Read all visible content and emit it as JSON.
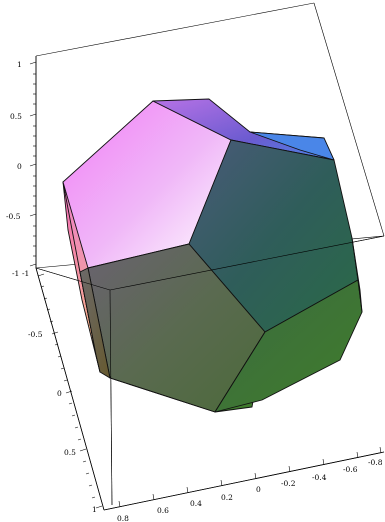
{
  "plot": {
    "z_axis": {
      "ticks": [
        "1",
        "0.5",
        "0",
        "-0.5",
        "-1"
      ]
    },
    "y_axis": {
      "ticks": [
        "-1",
        "-0.5",
        "0",
        "0.5",
        "1"
      ]
    },
    "x_axis": {
      "ticks": [
        "0.8",
        "0.6",
        "0.4",
        "0.2",
        "0",
        "-0.2",
        "-0.4",
        "-0.6",
        "-0.8"
      ]
    },
    "colors": {
      "magenta_face": "#f080f8",
      "violet_face": "#7a5fd6",
      "blue_face": "#4a86e8",
      "teal_face": "#2f5a55",
      "olive_face": "#5a6a38",
      "green_face": "#3d7a30",
      "pink_side": "#f07aa8",
      "peach_side": "#f7c27a"
    }
  }
}
